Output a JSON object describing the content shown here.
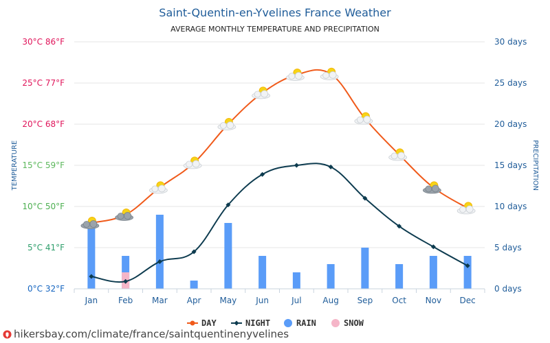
{
  "chart_data": {
    "type": "line+bar",
    "title": "Saint-Quentin-en-Yvelines France Weather",
    "subtitle": "AVERAGE MONTHLY TEMPERATURE AND PRECIPITATION",
    "ylabel_left": "TEMPERATURE",
    "ylabel_right": "PRECIPITATION",
    "categories": [
      "Jan",
      "Feb",
      "Mar",
      "Apr",
      "May",
      "Jun",
      "Jul",
      "Aug",
      "Sep",
      "Oct",
      "Nov",
      "Dec"
    ],
    "left_ticks": [
      {
        "value": 0,
        "label": "0°C 32°F",
        "color": "#1565c0"
      },
      {
        "value": 5,
        "label": "5°C 41°F",
        "color": "#2e9e6b"
      },
      {
        "value": 10,
        "label": "10°C 50°F",
        "color": "#4caf50"
      },
      {
        "value": 15,
        "label": "15°C 59°F",
        "color": "#5cb85c"
      },
      {
        "value": 20,
        "label": "20°C 68°F",
        "color": "#e0145a"
      },
      {
        "value": 25,
        "label": "25°C 77°F",
        "color": "#e0145a"
      },
      {
        "value": 30,
        "label": "30°C 86°F",
        "color": "#e0145a"
      }
    ],
    "right_ticks": [
      {
        "value": 0,
        "label": "0 days"
      },
      {
        "value": 5,
        "label": "5 days"
      },
      {
        "value": 10,
        "label": "10 days"
      },
      {
        "value": 15,
        "label": "15 days"
      },
      {
        "value": 20,
        "label": "20 days"
      },
      {
        "value": 25,
        "label": "25 days"
      },
      {
        "value": 30,
        "label": "30 days"
      }
    ],
    "ylim_left": [
      0,
      30
    ],
    "ylim_right": [
      0,
      30
    ],
    "grid": true,
    "legend_position": "bottom",
    "series": [
      {
        "name": "DAY",
        "type": "line",
        "color": "#f05a1a",
        "values": [
          8,
          9,
          12.3,
          15.3,
          20,
          23.8,
          26,
          26.1,
          20.7,
          16.3,
          12.3,
          9.8
        ]
      },
      {
        "name": "NIGHT",
        "type": "line",
        "color": "#0d3b4f",
        "values": [
          1.5,
          0.9,
          3.3,
          4.5,
          10.2,
          13.9,
          15,
          14.8,
          11,
          7.6,
          5.1,
          2.8
        ]
      },
      {
        "name": "RAIN",
        "type": "bar",
        "color": "#5a9cf8",
        "values": [
          8,
          4,
          9,
          1,
          8,
          4,
          2,
          3,
          5,
          3,
          4,
          4
        ]
      },
      {
        "name": "SNOW",
        "type": "bar",
        "color": "#f5b5c8",
        "values": [
          0,
          2,
          0,
          0,
          0,
          0,
          0,
          0,
          0,
          0,
          0,
          0
        ]
      }
    ],
    "weather_icons": [
      "partly-cloudy-icon",
      "partly-cloudy-icon",
      "partly-sunny-icon",
      "partly-sunny-icon",
      "partly-sunny-icon",
      "partly-sunny-icon",
      "partly-sunny-icon",
      "partly-sunny-icon",
      "partly-sunny-icon",
      "partly-sunny-icon",
      "partly-cloudy-icon",
      "partly-sunny-icon"
    ]
  },
  "footer": {
    "link_text": "hikersbay.com/climate/france/saintquentinenyvelines",
    "icon": "location-pin-icon",
    "icon_color": "#e53935"
  }
}
